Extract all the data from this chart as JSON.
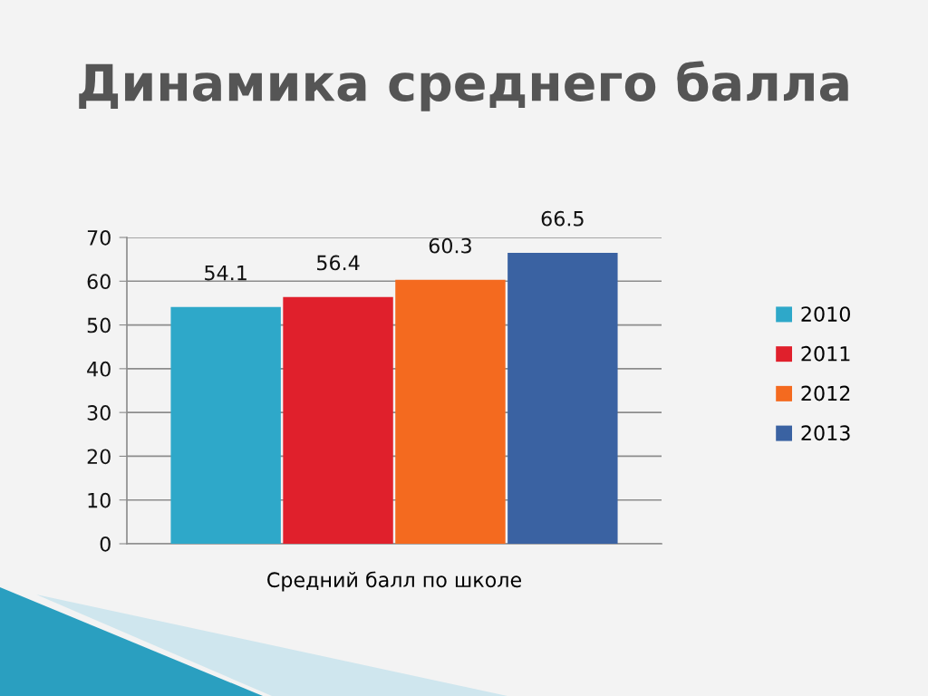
{
  "chart_data": {
    "type": "bar",
    "title": "Динамика среднего балла",
    "categories": [
      "Средний балл по школе"
    ],
    "series": [
      {
        "name": "2010",
        "color": "#2ea8c9",
        "values": [
          54.1
        ]
      },
      {
        "name": "2011",
        "color": "#e0202c",
        "values": [
          56.4
        ]
      },
      {
        "name": "2012",
        "color": "#f46a1f",
        "values": [
          60.3
        ]
      },
      {
        "name": "2013",
        "color": "#3a62a2",
        "values": [
          66.5
        ]
      }
    ],
    "ylim": [
      0,
      70
    ],
    "yticks": [
      0,
      10,
      20,
      30,
      40,
      50,
      60,
      70
    ],
    "grid": "y",
    "legend": "right",
    "data_labels": true
  }
}
